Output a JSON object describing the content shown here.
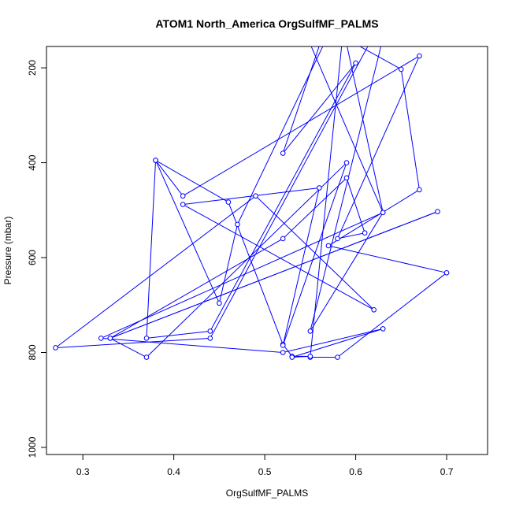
{
  "chart_data": {
    "type": "line",
    "title": "ATOM1 North_America OrgSulfMF_PALMS",
    "xlabel": "OrgSulfMF_PALMS",
    "ylabel": "Pressure (mbar)",
    "xlim": [
      0.26,
      0.745
    ],
    "ylim": [
      1015,
      155
    ],
    "y_axis_reversed": true,
    "xticks": [
      0.3,
      0.4,
      0.5,
      0.6,
      0.7
    ],
    "yticks": [
      200,
      400,
      600,
      800,
      1000
    ],
    "grid": false,
    "legend": "none",
    "marker": "open-circle",
    "color": "#0000ff",
    "series": [
      {
        "x": [
          0.6,
          0.65,
          0.67,
          0.57,
          0.7,
          0.58,
          0.55,
          0.59,
          0.47,
          0.45,
          0.38,
          0.46,
          0.52,
          0.53,
          0.55,
          0.53,
          0.63,
          0.52,
          0.32,
          0.63,
          0.55,
          0.64,
          0.44,
          0.27,
          0.49,
          0.62,
          0.41,
          0.56,
          0.52,
          0.59,
          0.37,
          0.33,
          0.69,
          0.33,
          0.52,
          0.59,
          0.61,
          0.58,
          0.67,
          0.41,
          0.38,
          0.37,
          0.44,
          0.6,
          0.52,
          0.58,
          0.55,
          0.63,
          0.59
        ],
        "y": [
          150,
          203,
          457,
          575,
          632,
          810,
          810,
          50,
          530,
          696,
          395,
          483,
          783,
          808,
          808,
          810,
          750,
          800,
          770,
          505,
          755,
          60,
          770,
          790,
          470,
          710,
          488,
          453,
          785,
          400,
          810,
          770,
          503,
          770,
          560,
          432,
          548,
          560,
          175,
          470,
          395,
          770,
          755,
          190,
          380,
          40,
          150,
          505,
          150
        ]
      }
    ]
  }
}
